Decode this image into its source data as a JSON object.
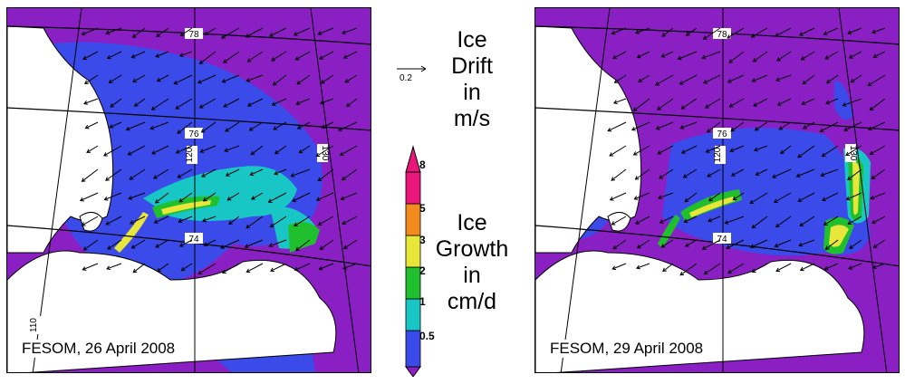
{
  "title": {
    "drift": [
      "Ice",
      "Drift",
      "in",
      "m/s"
    ],
    "growth": [
      "Ice",
      "Growth",
      "in",
      "cm/d"
    ]
  },
  "drift_scale": {
    "value_label": "0.2"
  },
  "colorbar": {
    "ticks": [
      "0.5",
      "1",
      "2",
      "3",
      "5",
      "8"
    ],
    "colors": [
      "#3a4bea",
      "#18c6c6",
      "#1fbf2d",
      "#e8e63a",
      "#f28a1d",
      "#ea167c"
    ],
    "underflow_color": "#8a1fc4",
    "overflow_color": "#ea167c"
  },
  "maps": [
    {
      "label": "FESOM, 26 April 2008",
      "lat_labels": [
        "78",
        "76",
        "74"
      ],
      "lon_labels": [
        "110",
        "120",
        "130"
      ]
    },
    {
      "label": "FESOM, 29 April 2008",
      "lat_labels": [
        "78",
        "76",
        "74"
      ],
      "lon_labels": [
        "120",
        "130"
      ]
    }
  ]
}
